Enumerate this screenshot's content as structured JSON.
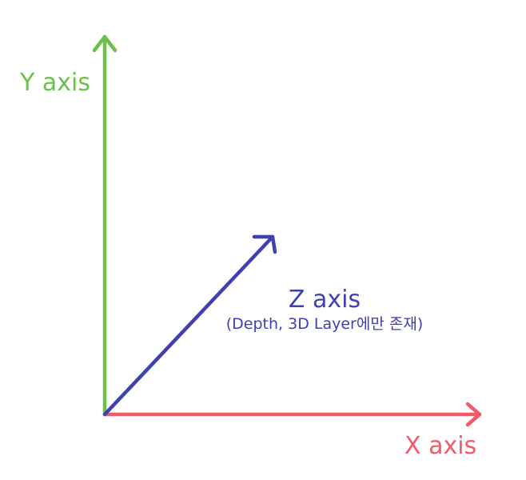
{
  "axes": {
    "y": {
      "label": "Y axis",
      "color": "#6cc04a"
    },
    "x": {
      "label": "X axis",
      "color": "#f2596a"
    },
    "z": {
      "label": "Z axis",
      "sublabel": "(Depth, 3D Layer에만 존재)",
      "color": "#4040b0"
    }
  }
}
